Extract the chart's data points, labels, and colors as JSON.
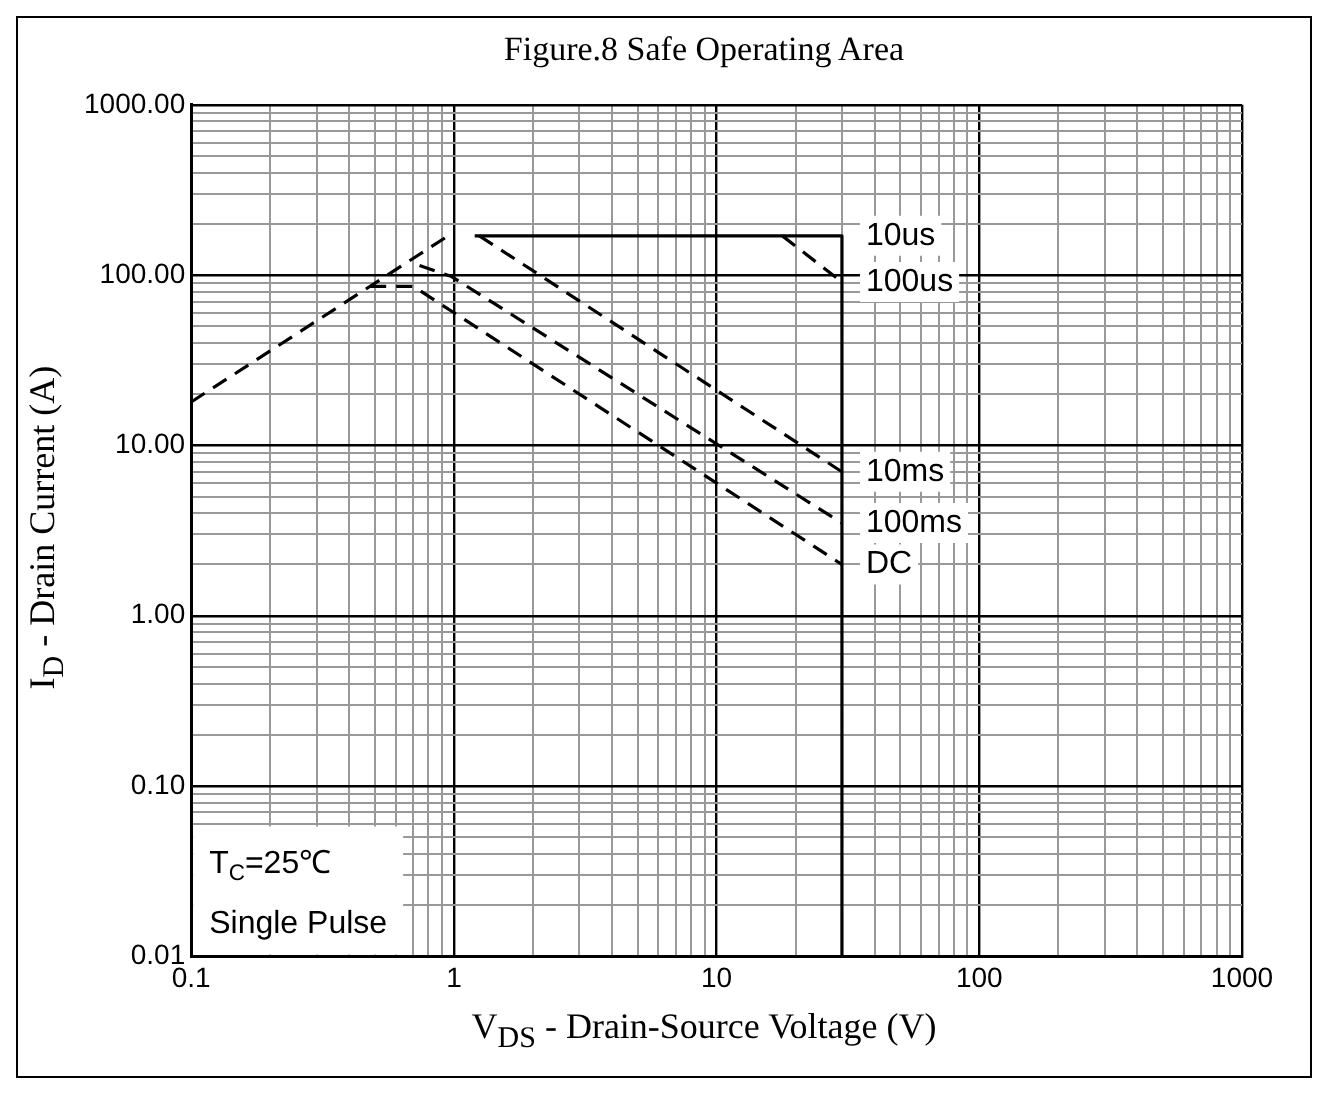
{
  "chart_data": {
    "type": "line",
    "title": "Figure.8 Safe Operating Area",
    "xlabel": "V$_{DS}$ - Drain-Source Voltage (V)",
    "ylabel": "I$_{D}$ - Drain Current (A)",
    "log": "xy",
    "grid": true,
    "legend": false,
    "marker": "none",
    "xlim": [
      0.1,
      1000
    ],
    "ylim": [
      0.01,
      1000
    ],
    "xticks": [
      0.1,
      {
        "value": 0.2,
        "label": null
      },
      {
        "value": 0.3,
        "label": null
      },
      {
        "value": 0.4,
        "label": null
      },
      {
        "value": 0.5,
        "label": null
      },
      {
        "value": 0.6,
        "label": null
      },
      {
        "value": 0.7,
        "label": null
      },
      {
        "value": 0.8,
        "label": null
      },
      {
        "value": 0.9,
        "label": null
      },
      1,
      {
        "value": 2,
        "label": null
      },
      {
        "value": 3,
        "label": null
      },
      {
        "value": 4,
        "label": null
      },
      {
        "value": 5,
        "label": null
      },
      {
        "value": 6,
        "label": null
      },
      {
        "value": 7,
        "label": null
      },
      {
        "value": 8,
        "label": null
      },
      {
        "value": 9,
        "label": null
      },
      10,
      {
        "value": 20,
        "label": null
      },
      {
        "value": 30,
        "label": null
      },
      {
        "value": 40,
        "label": null
      },
      {
        "value": 50,
        "label": null
      },
      {
        "value": 60,
        "label": null
      },
      {
        "value": 70,
        "label": null
      },
      {
        "value": 80,
        "label": null
      },
      {
        "value": 90,
        "label": null
      },
      100,
      {
        "value": 200,
        "label": null
      },
      {
        "value": 300,
        "label": null
      },
      {
        "value": 400,
        "label": null
      },
      {
        "value": 500,
        "label": null
      },
      {
        "value": 600,
        "label": null
      },
      {
        "value": 700,
        "label": null
      },
      {
        "value": 800,
        "label": null
      },
      {
        "value": 900,
        "label": null
      },
      1000
    ],
    "yticks": [
      {
        "value": 0.01,
        "label": "0.01"
      },
      {
        "value": 0.02,
        "label": null
      },
      {
        "value": 0.03,
        "label": null
      },
      {
        "value": 0.04,
        "label": null
      },
      {
        "value": 0.05,
        "label": null
      },
      {
        "value": 0.06,
        "label": null
      },
      {
        "value": 0.07,
        "label": null
      },
      {
        "value": 0.08,
        "label": null
      },
      {
        "value": 0.09,
        "label": null
      },
      {
        "value": 0.1,
        "label": "0.10"
      },
      {
        "value": 0.2,
        "label": null
      },
      {
        "value": 0.3,
        "label": null
      },
      {
        "value": 0.4,
        "label": null
      },
      {
        "value": 0.5,
        "label": null
      },
      {
        "value": 0.6,
        "label": null
      },
      {
        "value": 0.7,
        "label": null
      },
      {
        "value": 0.8,
        "label": null
      },
      {
        "value": 0.9,
        "label": null
      },
      {
        "value": 1,
        "label": "1.00"
      },
      {
        "value": 2,
        "label": null
      },
      {
        "value": 3,
        "label": null
      },
      {
        "value": 4,
        "label": null
      },
      {
        "value": 5,
        "label": null
      },
      {
        "value": 6,
        "label": null
      },
      {
        "value": 7,
        "label": null
      },
      {
        "value": 8,
        "label": null
      },
      {
        "value": 9,
        "label": null
      },
      {
        "value": 10,
        "label": "10.00"
      },
      {
        "value": 20,
        "label": null
      },
      {
        "value": 30,
        "label": null
      },
      {
        "value": 40,
        "label": null
      },
      {
        "value": 50,
        "label": null
      },
      {
        "value": 60,
        "label": null
      },
      {
        "value": 70,
        "label": null
      },
      {
        "value": 80,
        "label": null
      },
      {
        "value": 90,
        "label": null
      },
      {
        "value": 100,
        "label": "100.00"
      },
      {
        "value": 200,
        "label": null
      },
      {
        "value": 300,
        "label": null
      },
      {
        "value": 400,
        "label": null
      },
      {
        "value": 500,
        "label": null
      },
      {
        "value": 600,
        "label": null
      },
      {
        "value": 700,
        "label": null
      },
      {
        "value": 800,
        "label": null
      },
      {
        "value": 900,
        "label": null
      },
      {
        "value": 1000,
        "label": "1000.00"
      }
    ],
    "series": [
      {
        "color": "#000000",
        "line_style": "dashed",
        "x": [
          0.1,
          0.95
        ],
        "values": [
          18,
          170
        ]
      },
      {
        "name": "10us",
        "color": "#000000",
        "line_style": "solid",
        "x": [
          1.2,
          30,
          30
        ],
        "values": [
          170,
          170,
          0.01
        ]
      },
      {
        "name": "100us",
        "color": "#000000",
        "line_style": "dashed",
        "x": [
          17.8,
          30
        ],
        "values": [
          170,
          91
        ]
      },
      {
        "name": "10ms",
        "color": "#000000",
        "line_style": "dashed",
        "x": [
          1.25,
          30
        ],
        "values": [
          170,
          7
        ]
      },
      {
        "name": "100ms",
        "color": "#000000",
        "line_style": "dashed",
        "x": [
          0.74,
          0.98,
          30
        ],
        "values": [
          114,
          98,
          3.5
        ]
      },
      {
        "name": "DC",
        "color": "#000000",
        "line_style": "dashed",
        "x": [
          0.48,
          0.7,
          30
        ],
        "values": [
          86,
          86,
          2
        ]
      }
    ],
    "annotations": [
      "T$_{C}$=25℃",
      "Single Pulse"
    ]
  }
}
